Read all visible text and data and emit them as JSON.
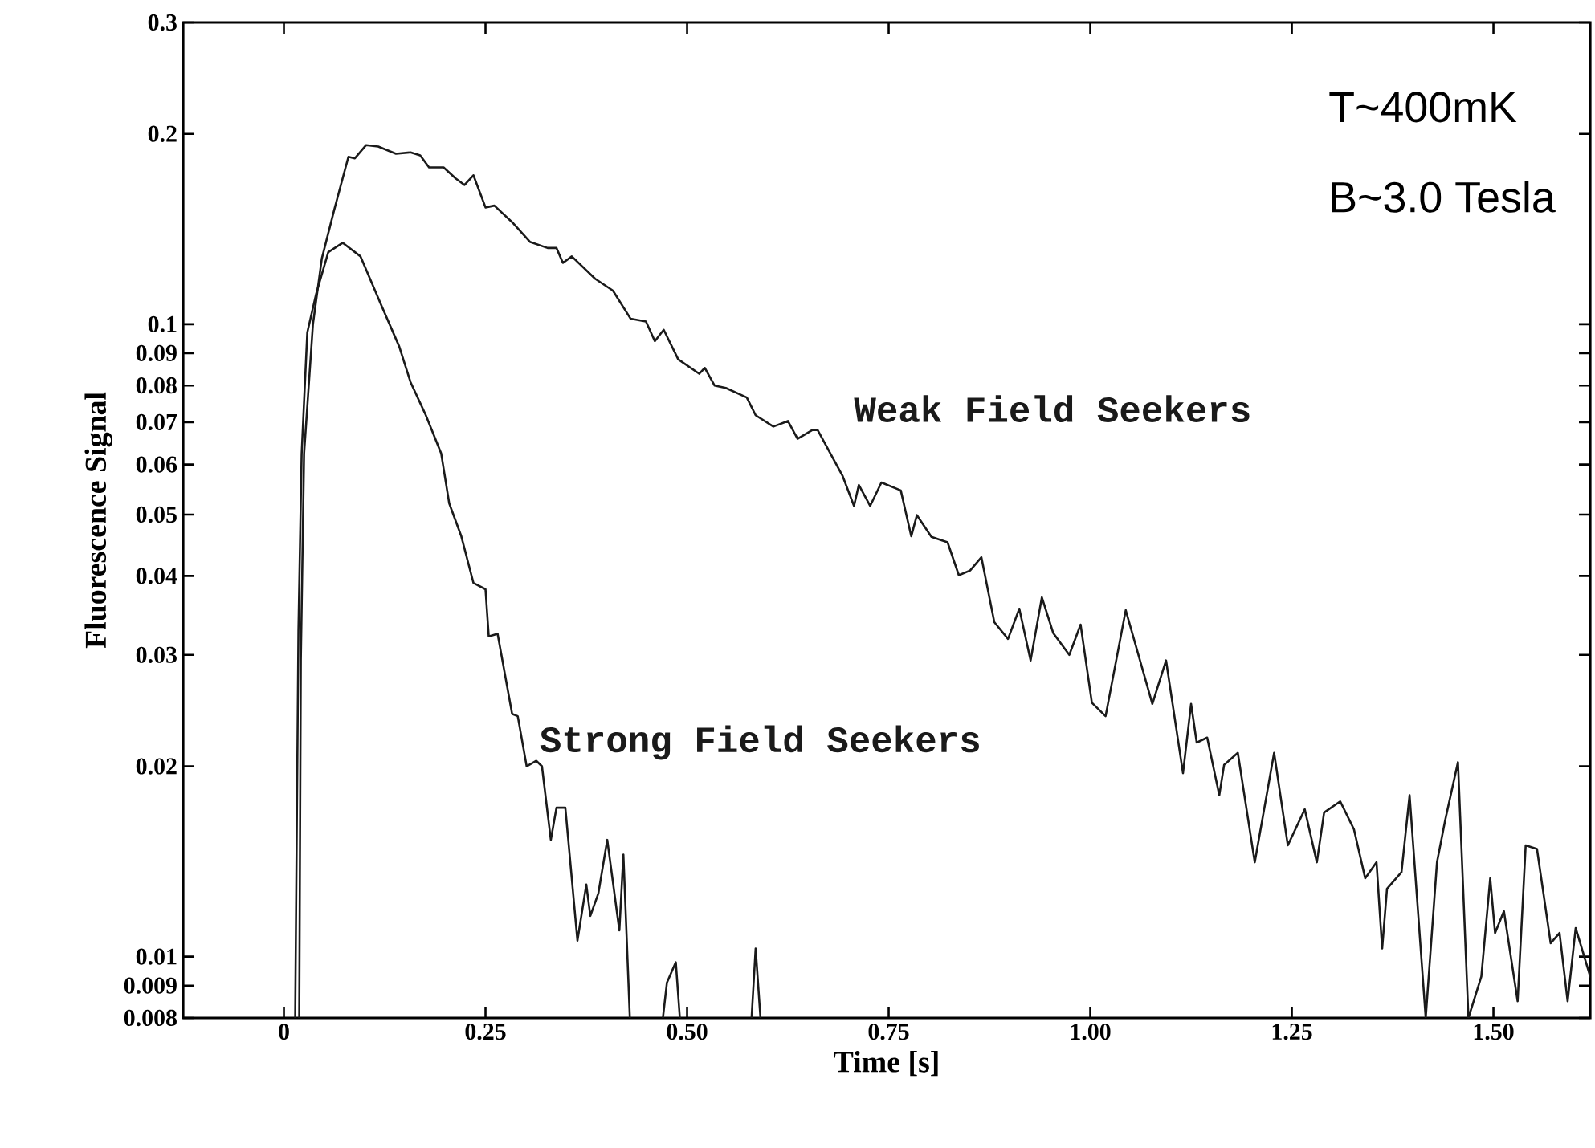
{
  "chart_data": {
    "type": "line",
    "xlabel": "Time [s]",
    "ylabel": "Fluorescence Signal",
    "log": "y",
    "grid": false,
    "marker": "none",
    "line_style": "solid",
    "xlim": [
      -0.125,
      1.62
    ],
    "ylim": [
      0.008,
      0.3
    ],
    "xticks": [
      0,
      0.25,
      {
        "value": 0.5,
        "label": "0.50"
      },
      0.75,
      {
        "value": 1,
        "label": "1.00"
      },
      1.25,
      {
        "value": 1.5,
        "label": "1.50"
      }
    ],
    "yticks": [
      0.008,
      0.009,
      0.01,
      0.02,
      0.03,
      0.04,
      0.05,
      0.06,
      0.07,
      0.08,
      0.09,
      0.1,
      0.2,
      0.3
    ],
    "annotations": [
      "T~400mK",
      "B~3.0 Tesla"
    ],
    "series": [
      {
        "name": "Weak Field Seekers",
        "color": "#1a1a1a",
        "x": [
          0.019,
          0.021,
          0.025,
          0.036,
          0.047,
          0.062,
          0.08,
          0.088,
          0.102,
          0.117,
          0.139,
          0.157,
          0.169,
          0.18,
          0.198,
          0.213,
          0.224,
          0.235,
          0.25,
          0.261,
          0.283,
          0.305,
          0.327,
          0.338,
          0.346,
          0.357,
          0.386,
          0.408,
          0.43,
          0.449,
          0.46,
          0.471,
          0.489,
          0.515,
          0.522,
          0.534,
          0.548,
          0.574,
          0.585,
          0.607,
          0.625,
          0.637,
          0.655,
          0.662,
          0.693,
          0.707,
          0.713,
          0.727,
          0.741,
          0.765,
          0.778,
          0.785,
          0.803,
          0.823,
          0.837,
          0.851,
          0.865,
          0.881,
          0.898,
          0.912,
          0.926,
          0.94,
          0.954,
          0.974,
          0.988,
          1.002,
          1.019,
          1.044,
          1.077,
          1.094,
          1.115,
          1.125,
          1.132,
          1.145,
          1.16,
          1.166,
          1.183,
          1.204,
          1.228,
          1.245,
          1.266,
          1.281,
          1.29,
          1.31,
          1.327,
          1.341,
          1.355,
          1.362,
          1.368,
          1.386,
          1.396,
          1.416,
          1.43,
          1.44,
          1.456,
          1.469,
          1.485,
          1.496,
          1.502,
          1.513,
          1.53,
          1.54,
          1.554,
          1.571,
          1.582,
          1.592,
          1.602,
          1.62
        ],
        "values": [
          0.008,
          0.0295,
          0.0624,
          0.1,
          0.127,
          0.151,
          0.184,
          0.183,
          0.192,
          0.191,
          0.186,
          0.187,
          0.185,
          0.177,
          0.177,
          0.17,
          0.166,
          0.172,
          0.153,
          0.154,
          0.145,
          0.135,
          0.132,
          0.132,
          0.125,
          0.128,
          0.118,
          0.113,
          0.102,
          0.101,
          0.094,
          0.098,
          0.088,
          0.0835,
          0.0853,
          0.08,
          0.0793,
          0.0766,
          0.0718,
          0.0689,
          0.0703,
          0.0659,
          0.068,
          0.068,
          0.0575,
          0.0516,
          0.0557,
          0.0516,
          0.0562,
          0.0546,
          0.0462,
          0.0499,
          0.0461,
          0.0452,
          0.0401,
          0.0408,
          0.0428,
          0.0338,
          0.0318,
          0.0355,
          0.0294,
          0.037,
          0.0325,
          0.03,
          0.0335,
          0.0252,
          0.024,
          0.0353,
          0.0251,
          0.0294,
          0.0195,
          0.0251,
          0.0218,
          0.0222,
          0.018,
          0.0201,
          0.021,
          0.0141,
          0.021,
          0.015,
          0.0171,
          0.0141,
          0.0169,
          0.0176,
          0.0159,
          0.0133,
          0.0141,
          0.0103,
          0.0128,
          0.0136,
          0.018,
          0.008,
          0.0141,
          0.0164,
          0.0203,
          0.008,
          0.0093,
          0.0133,
          0.0109,
          0.0118,
          0.0085,
          0.015,
          0.0148,
          0.0105,
          0.0109,
          0.0085,
          0.0111,
          0.0093
        ]
      },
      {
        "name": "Strong Field Seekers",
        "color": "#1a1a1a",
        "x": [
          0.014,
          0.018,
          0.022,
          0.029,
          0.04,
          0.055,
          0.073,
          0.095,
          0.121,
          0.143,
          0.157,
          0.176,
          0.195,
          0.205,
          0.22,
          0.235,
          0.25,
          0.254,
          0.265,
          0.283,
          0.29,
          0.301,
          0.313,
          0.32,
          0.331,
          0.338,
          0.349,
          0.364,
          0.375,
          0.38,
          0.39,
          0.401,
          0.416,
          0.421,
          0.429,
          0.45,
          0.47,
          0.475,
          0.486,
          0.491,
          0.53,
          0.58,
          0.585,
          0.591
        ],
        "values": [
          0.008,
          0.0327,
          0.0624,
          0.097,
          0.1117,
          0.13,
          0.1345,
          0.128,
          0.107,
          0.0922,
          0.081,
          0.0718,
          0.0625,
          0.0521,
          0.0462,
          0.039,
          0.0381,
          0.0321,
          0.0324,
          0.0242,
          0.024,
          0.02,
          0.0204,
          0.02,
          0.0153,
          0.0172,
          0.0172,
          0.0106,
          0.013,
          0.0116,
          0.0126,
          0.0153,
          0.011,
          0.0145,
          0.008,
          null,
          0.008,
          0.0091,
          0.0098,
          0.008,
          null,
          0.008,
          0.0103,
          0.008
        ]
      }
    ]
  }
}
